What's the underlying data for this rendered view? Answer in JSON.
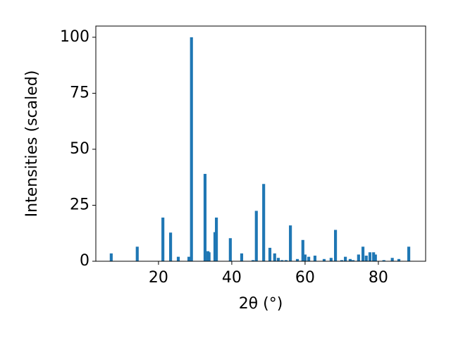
{
  "chart_data": {
    "type": "bar",
    "xlabel": "2θ (°)",
    "ylabel": "Intensities (scaled)",
    "color": "#1f77b4",
    "bar_width": 0.8,
    "x": [
      7.1,
      14.2,
      21.2,
      23.3,
      25.4,
      28.3,
      29.0,
      32.7,
      33.5,
      33.8,
      35.4,
      35.8,
      39.6,
      42.7,
      45.8,
      46.7,
      48.7,
      50.4,
      51.7,
      52.7,
      53.7,
      54.8,
      56.0,
      57.9,
      59.4,
      60.0,
      61.0,
      62.7,
      65.2,
      67.1,
      68.3,
      70.0,
      71.0,
      72.3,
      73.1,
      74.6,
      75.8,
      76.7,
      77.7,
      78.7,
      79.2,
      81.5,
      83.8,
      85.6,
      88.3
    ],
    "values": [
      3.5,
      6.5,
      19.5,
      12.8,
      2,
      2,
      100,
      39,
      4.5,
      4,
      13,
      19.5,
      10.3,
      3.5,
      0.5,
      22.5,
      34.5,
      6,
      3.5,
      1.5,
      0.5,
      0.5,
      16,
      1,
      9.5,
      3,
      2,
      2.5,
      1,
      1.5,
      14,
      0.5,
      2,
      1,
      0.5,
      3,
      6.5,
      2.5,
      4,
      4,
      3,
      0.5,
      1.5,
      1,
      6.5
    ],
    "xlim": [
      2.9,
      92.9
    ],
    "ylim": [
      0,
      105
    ],
    "xticks": [
      20,
      40,
      60,
      80
    ],
    "yticks": [
      0,
      25,
      50,
      75,
      100
    ]
  }
}
